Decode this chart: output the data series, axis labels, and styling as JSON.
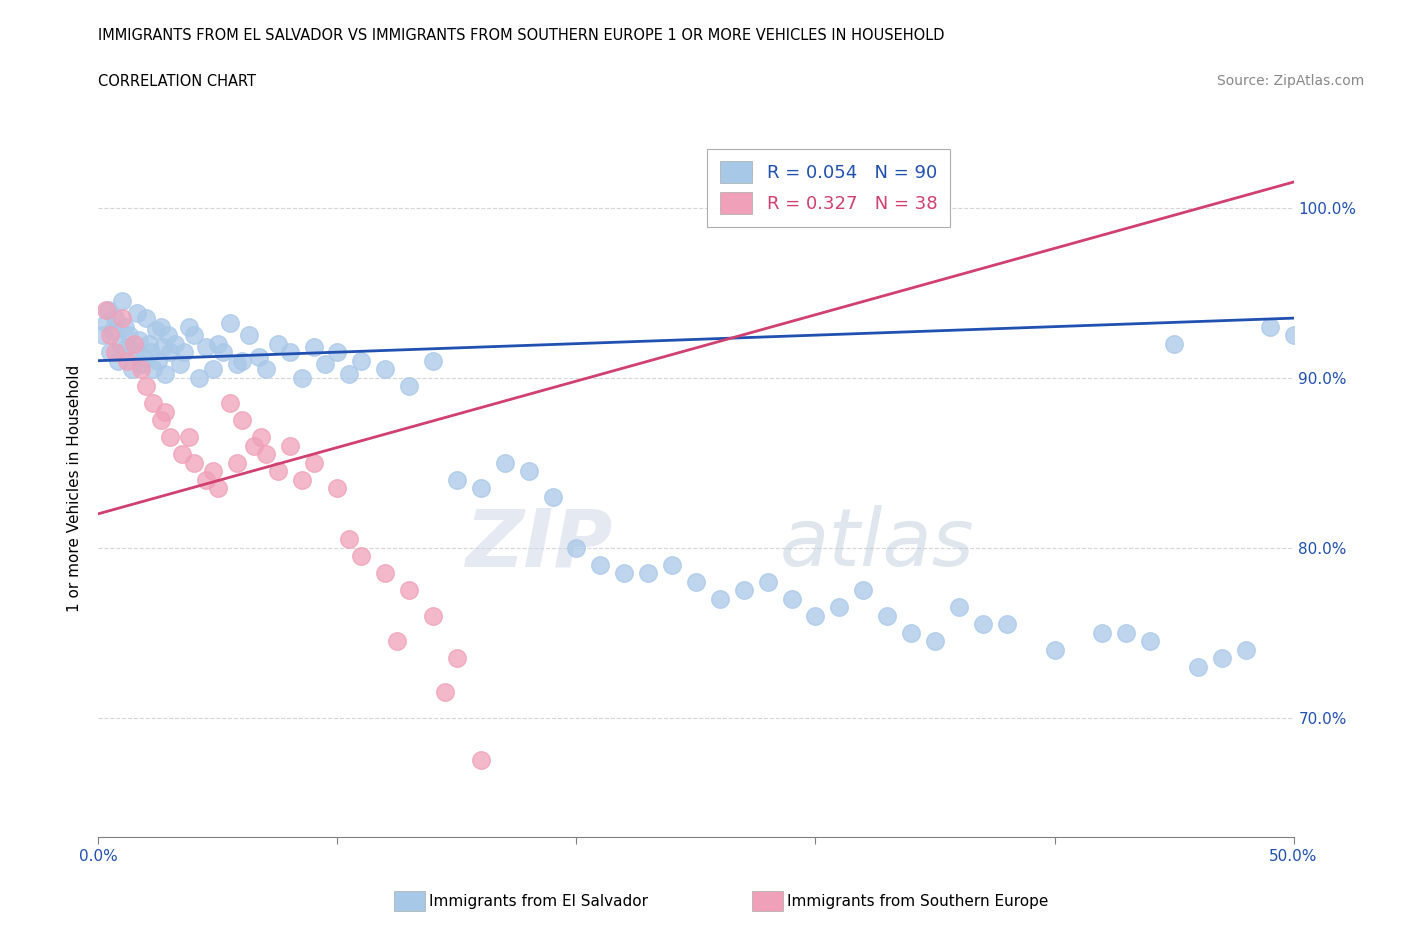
{
  "title_line1": "IMMIGRANTS FROM EL SALVADOR VS IMMIGRANTS FROM SOUTHERN EUROPE 1 OR MORE VEHICLES IN HOUSEHOLD",
  "title_line2": "CORRELATION CHART",
  "source_text": "Source: ZipAtlas.com",
  "ylabel": "1 or more Vehicles in Household",
  "xlim": [
    0.0,
    50.0
  ],
  "ylim": [
    63.0,
    104.0
  ],
  "x_ticks": [
    0.0,
    10.0,
    20.0,
    30.0,
    40.0,
    50.0
  ],
  "y_ticks": [
    70.0,
    80.0,
    90.0,
    100.0
  ],
  "y_tick_labels": [
    "70.0%",
    "80.0%",
    "90.0%",
    "100.0%"
  ],
  "blue_color": "#a8c8e8",
  "pink_color": "#f0a0b8",
  "blue_line_color": "#2050b0",
  "pink_line_color": "#d04070",
  "blue_label": "Immigrants from El Salvador",
  "pink_label": "Immigrants from Southern Europe",
  "watermark_text": "ZIPatlas",
  "blue_scatter_x": [
    0.2,
    0.3,
    0.4,
    0.5,
    0.6,
    0.7,
    0.8,
    0.9,
    1.0,
    1.1,
    1.2,
    1.3,
    1.4,
    1.5,
    1.6,
    1.7,
    1.8,
    1.9,
    2.0,
    2.1,
    2.2,
    2.3,
    2.4,
    2.5,
    2.6,
    2.7,
    2.8,
    2.9,
    3.0,
    3.2,
    3.4,
    3.6,
    3.8,
    4.0,
    4.2,
    4.5,
    4.8,
    5.0,
    5.2,
    5.5,
    5.8,
    6.0,
    6.3,
    6.7,
    7.0,
    7.5,
    8.0,
    8.5,
    9.0,
    9.5,
    10.0,
    10.5,
    11.0,
    12.0,
    13.0,
    14.0,
    15.0,
    16.0,
    17.0,
    18.0,
    19.0,
    20.0,
    22.0,
    24.0,
    26.0,
    28.0,
    30.0,
    32.0,
    34.0,
    36.0,
    38.0,
    40.0,
    42.0,
    44.0,
    46.0,
    48.0,
    50.0,
    25.0,
    35.0,
    45.0,
    27.0,
    33.0,
    21.0,
    23.0,
    29.0,
    31.0,
    37.0,
    43.0,
    47.0,
    49.0
  ],
  "blue_scatter_y": [
    92.5,
    93.2,
    94.0,
    91.5,
    92.8,
    93.5,
    91.0,
    92.0,
    94.5,
    93.0,
    91.8,
    92.5,
    90.5,
    91.5,
    93.8,
    92.2,
    90.8,
    91.2,
    93.5,
    92.0,
    91.5,
    90.5,
    92.8,
    91.0,
    93.0,
    91.8,
    90.2,
    92.5,
    91.5,
    92.0,
    90.8,
    91.5,
    93.0,
    92.5,
    90.0,
    91.8,
    90.5,
    92.0,
    91.5,
    93.2,
    90.8,
    91.0,
    92.5,
    91.2,
    90.5,
    92.0,
    91.5,
    90.0,
    91.8,
    90.8,
    91.5,
    90.2,
    91.0,
    90.5,
    89.5,
    91.0,
    84.0,
    83.5,
    85.0,
    84.5,
    83.0,
    80.0,
    78.5,
    79.0,
    77.0,
    78.0,
    76.0,
    77.5,
    75.0,
    76.5,
    75.5,
    74.0,
    75.0,
    74.5,
    73.0,
    74.0,
    92.5,
    78.0,
    74.5,
    92.0,
    77.5,
    76.0,
    79.0,
    78.5,
    77.0,
    76.5,
    75.5,
    75.0,
    73.5,
    93.0
  ],
  "pink_scatter_x": [
    0.3,
    0.5,
    0.7,
    1.0,
    1.2,
    1.5,
    1.8,
    2.0,
    2.3,
    2.6,
    3.0,
    3.5,
    4.0,
    4.5,
    5.0,
    5.5,
    6.0,
    6.5,
    7.0,
    7.5,
    8.0,
    9.0,
    10.0,
    11.0,
    12.0,
    13.0,
    14.0,
    15.0,
    2.8,
    3.8,
    4.8,
    5.8,
    6.8,
    8.5,
    10.5,
    12.5,
    14.5,
    16.0
  ],
  "pink_scatter_y": [
    94.0,
    92.5,
    91.5,
    93.5,
    91.0,
    92.0,
    90.5,
    89.5,
    88.5,
    87.5,
    86.5,
    85.5,
    85.0,
    84.0,
    83.5,
    88.5,
    87.5,
    86.0,
    85.5,
    84.5,
    86.0,
    85.0,
    83.5,
    79.5,
    78.5,
    77.5,
    76.0,
    73.5,
    88.0,
    86.5,
    84.5,
    85.0,
    86.5,
    84.0,
    80.5,
    74.5,
    71.5,
    67.5
  ],
  "blue_line_x0": 0.0,
  "blue_line_y0": 91.0,
  "blue_line_x1": 50.0,
  "blue_line_y1": 93.5,
  "pink_line_x0": 0.0,
  "pink_line_y0": 82.0,
  "pink_line_x1": 50.0,
  "pink_line_y1": 101.5
}
